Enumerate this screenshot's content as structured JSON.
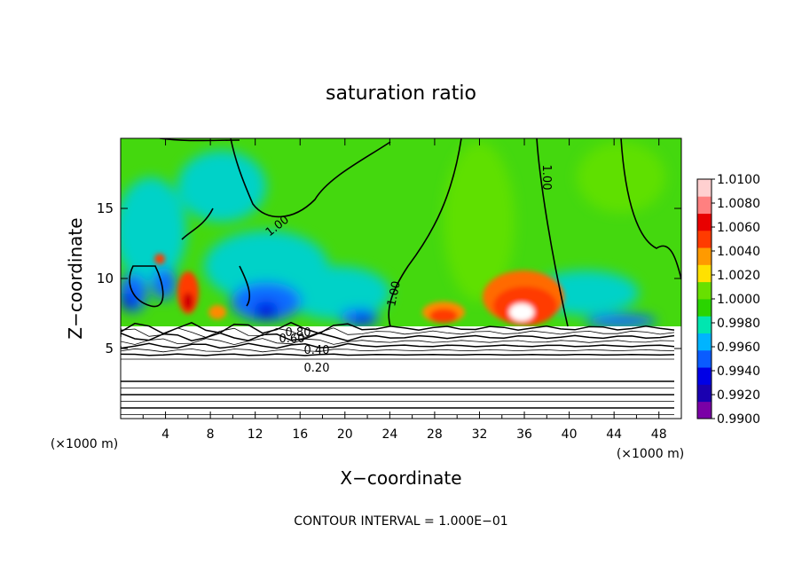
{
  "chart_data": {
    "type": "heatmap",
    "title": "saturation ratio",
    "xlabel": "X−coordinate",
    "ylabel": "Z−coordinate",
    "x_unit_label": "(×1000 m)",
    "footer": "CONTOUR INTERVAL = 1.000E−01",
    "xlim": [
      0,
      50
    ],
    "ylim": [
      0,
      20
    ],
    "x_ticks": [
      4,
      8,
      12,
      16,
      20,
      24,
      28,
      32,
      36,
      40,
      44,
      48
    ],
    "y_ticks": [
      5,
      10,
      15
    ],
    "colorbar": {
      "labels": [
        "0.9900",
        "0.9920",
        "0.9940",
        "0.9960",
        "0.9980",
        "1.0000",
        "1.0020",
        "1.0040",
        "1.0060",
        "1.0080",
        "1.0100"
      ],
      "colors": [
        "#7a00a6",
        "#1a00b0",
        "#0000e6",
        "#0a5cff",
        "#00b4ff",
        "#00e6b0",
        "#2ad400",
        "#68e000",
        "#ffe100",
        "#ff9a00",
        "#ff3b00",
        "#e80000",
        "#ff8080",
        "#ffd0d0"
      ]
    },
    "contour_labels": [
      "1.00",
      "1.00",
      "1.00",
      "0.80",
      "0.60",
      "0.40",
      "0.20"
    ],
    "field_colors": {
      "background": "#44d80e",
      "moist_high": "#ff3b00",
      "moist_peak": "#ffffff",
      "dry_cyan": "#00d2c8",
      "dry_blue": "#0a6cff",
      "dry_deep": "#0000e0",
      "subsaturated": "#ffffff"
    }
  }
}
